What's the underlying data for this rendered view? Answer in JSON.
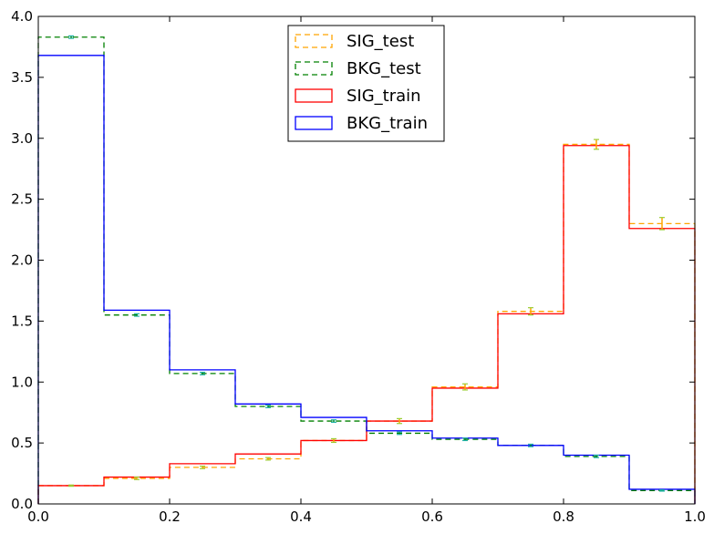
{
  "chart_data": {
    "type": "histogram",
    "title": "",
    "xlabel": "",
    "ylabel": "",
    "xlim": [
      0.0,
      1.0
    ],
    "ylim": [
      0.0,
      4.0
    ],
    "bin_edges": [
      0.0,
      0.1,
      0.2,
      0.3,
      0.4,
      0.5,
      0.6,
      0.7,
      0.8,
      0.9,
      1.0
    ],
    "x_ticks": [
      "0.0",
      "0.2",
      "0.4",
      "0.6",
      "0.8",
      "1.0"
    ],
    "y_ticks": [
      "0.0",
      "0.5",
      "1.0",
      "1.5",
      "2.0",
      "2.5",
      "3.0",
      "3.5",
      "4.0"
    ],
    "grid": false,
    "legend_position": "top-center",
    "series": [
      {
        "name": "SIG_test",
        "style": "dashed",
        "color": "#ffa500",
        "values": [
          0.15,
          0.21,
          0.3,
          0.37,
          0.52,
          0.68,
          0.96,
          1.58,
          2.95,
          2.3
        ],
        "errors": [
          0.005,
          0.01,
          0.01,
          0.01,
          0.015,
          0.02,
          0.025,
          0.03,
          0.04,
          0.05
        ]
      },
      {
        "name": "BKG_test",
        "style": "dashed",
        "color": "#008000",
        "values": [
          3.83,
          1.55,
          1.07,
          0.8,
          0.68,
          0.58,
          0.53,
          0.48,
          0.39,
          0.11
        ],
        "errors": [
          0.01,
          0.01,
          0.01,
          0.01,
          0.01,
          0.01,
          0.01,
          0.01,
          0.01,
          0.005
        ]
      },
      {
        "name": "SIG_train",
        "style": "solid",
        "color": "#ff0000",
        "values": [
          0.15,
          0.22,
          0.33,
          0.41,
          0.52,
          0.68,
          0.95,
          1.56,
          2.94,
          2.26
        ]
      },
      {
        "name": "BKG_train",
        "style": "solid",
        "color": "#0000ff",
        "values": [
          3.68,
          1.59,
          1.1,
          0.82,
          0.71,
          0.6,
          0.54,
          0.48,
          0.4,
          0.12
        ]
      }
    ]
  }
}
